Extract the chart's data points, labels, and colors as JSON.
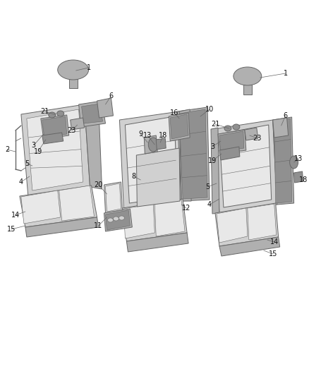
{
  "bg_color": "#ffffff",
  "lc": "#666666",
  "lc_dark": "#444444",
  "fc_light": "#e8e8e8",
  "fc_mid": "#d0d0d0",
  "fc_dark": "#b0b0b0",
  "fc_darker": "#909090",
  "fc_seat": "#c8c8c8",
  "lw": 0.7,
  "lw_thin": 0.4,
  "figw": 4.38,
  "figh": 5.33,
  "dpi": 100
}
